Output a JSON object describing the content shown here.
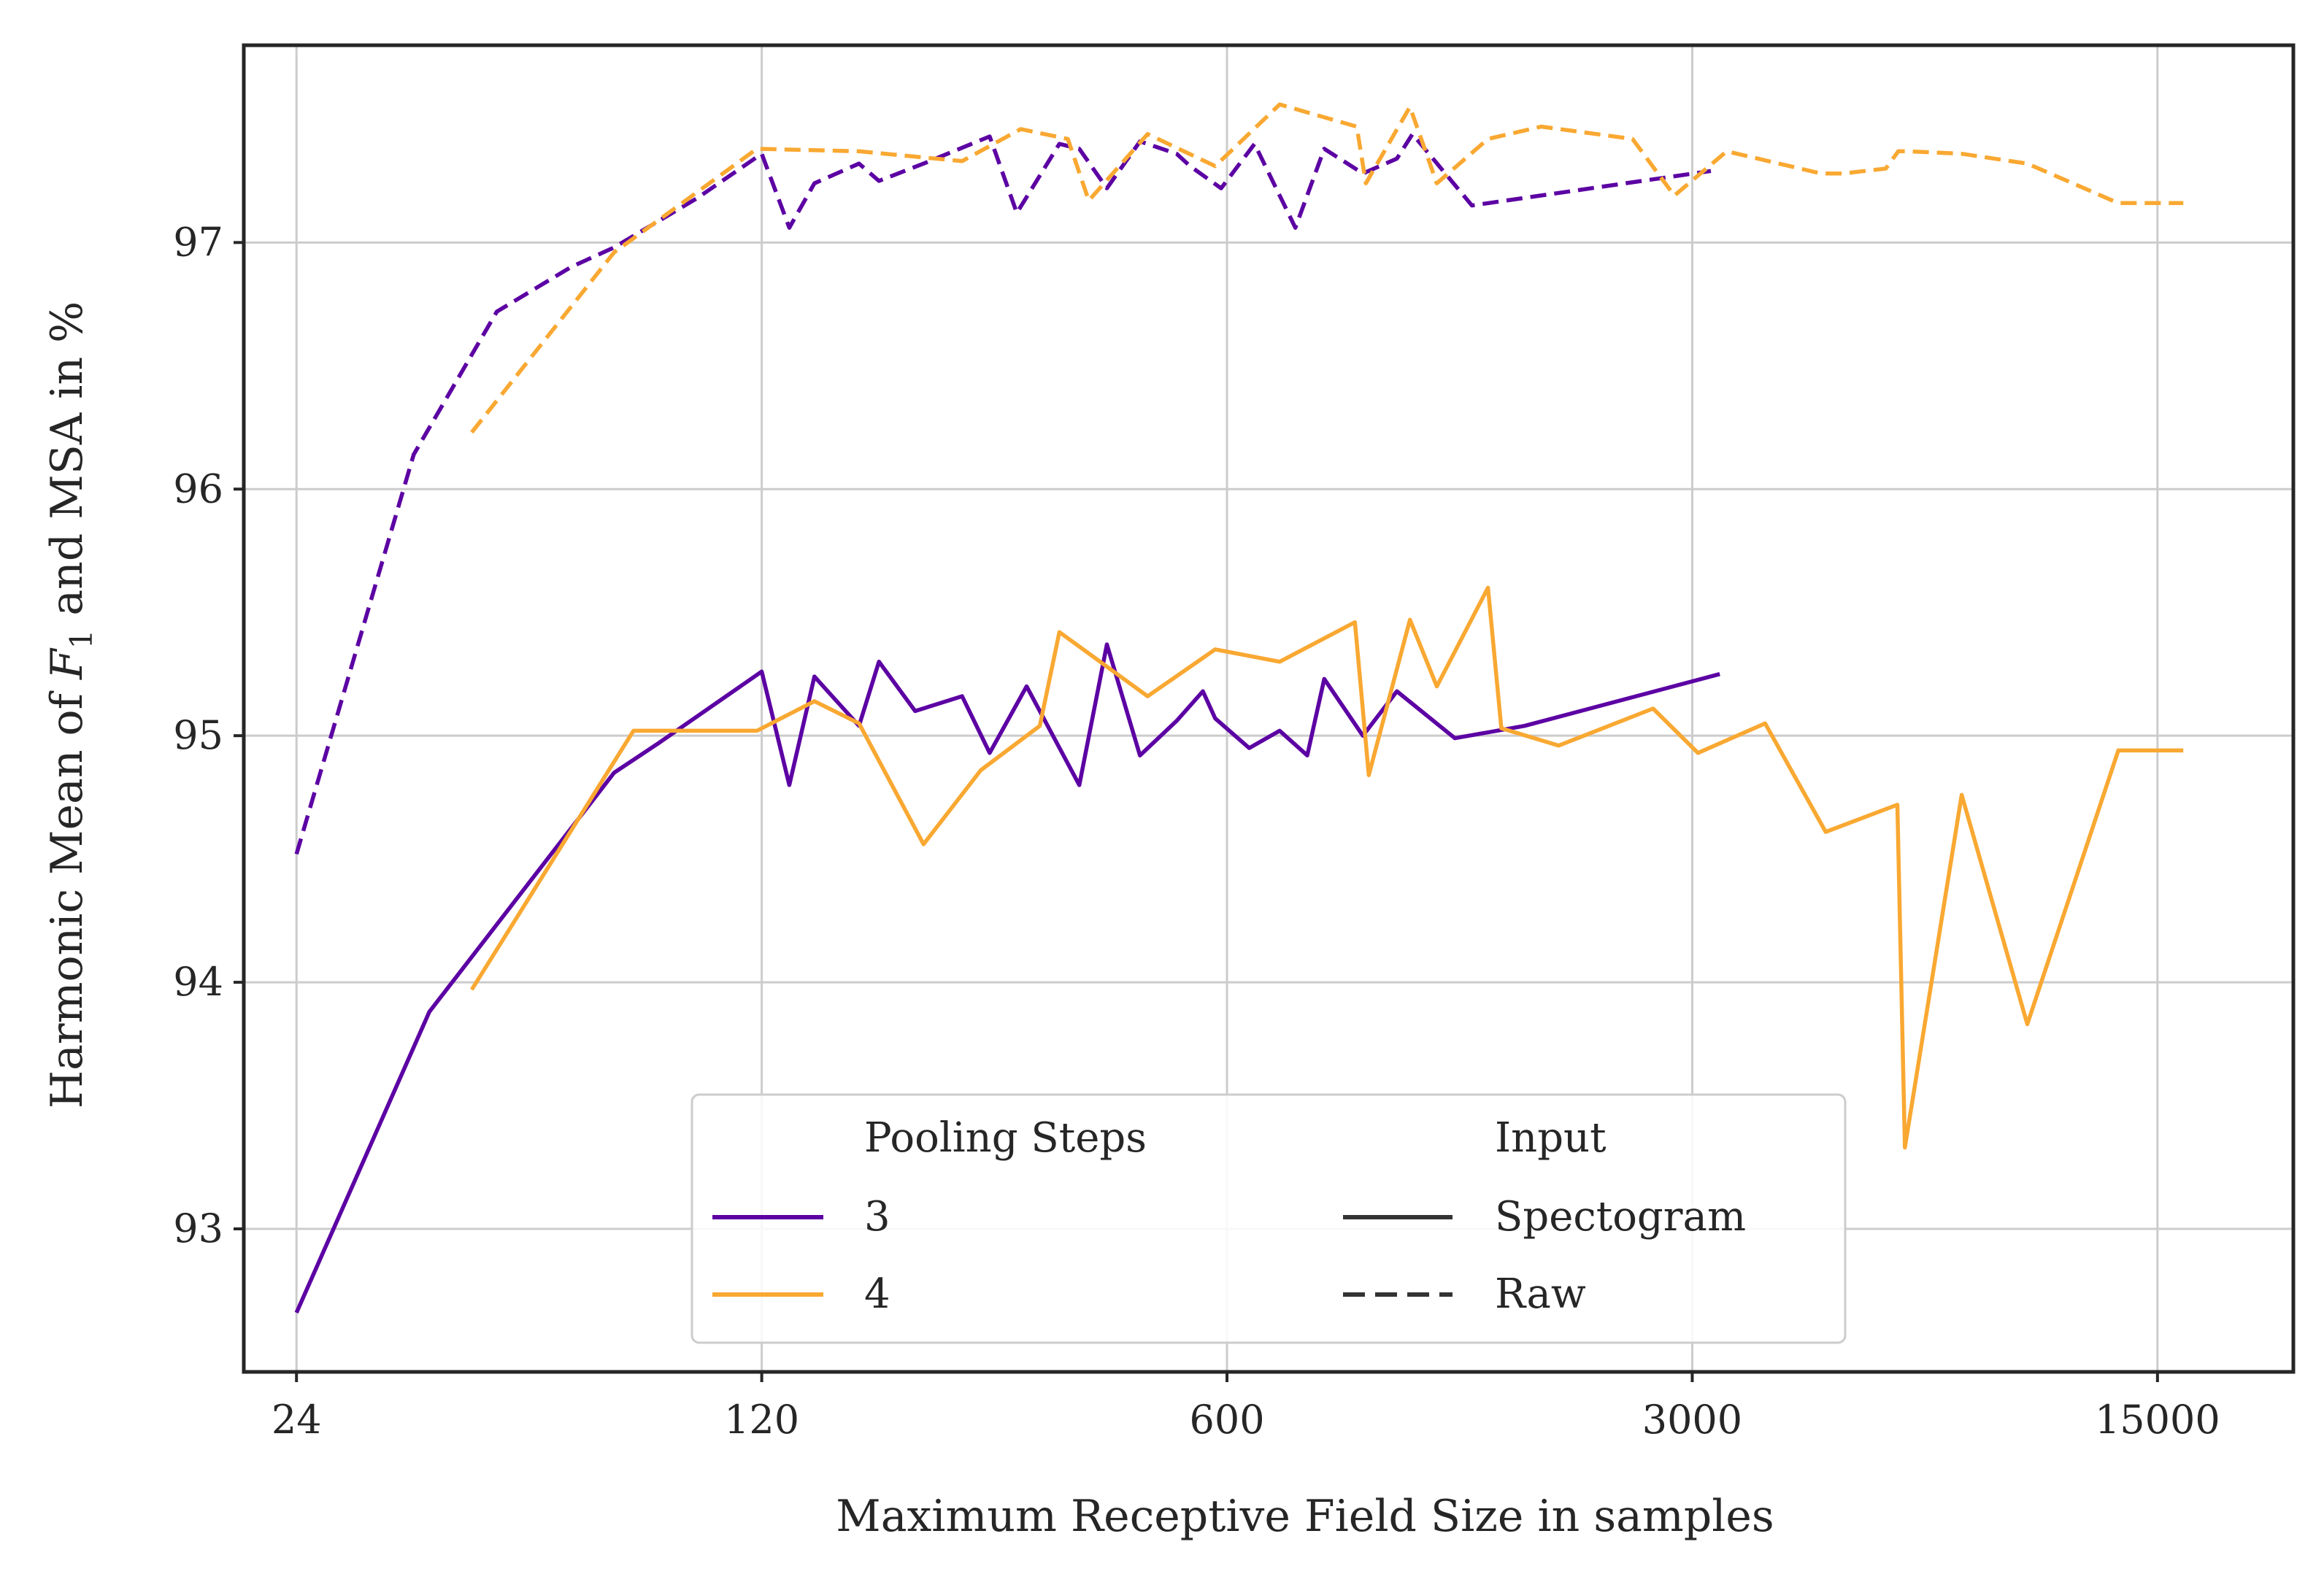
{
  "chart_data": {
    "type": "line",
    "title": "",
    "xlabel": "Maximum Receptive Field Size in samples",
    "ylabel_prefix": "Harmonic Mean of ",
    "ylabel_var": "F",
    "ylabel_sub": "1",
    "ylabel_suffix": " and MSA in %",
    "xscale": "log",
    "xlim": [
      20,
      24000
    ],
    "ylim": [
      92.42,
      97.8
    ],
    "xticks": [
      24,
      120,
      600,
      3000,
      15000
    ],
    "xtick_labels": [
      "24",
      "120",
      "600",
      "3000",
      "15000"
    ],
    "yticks": [
      93,
      94,
      95,
      96,
      97
    ],
    "ytick_labels": [
      "93",
      "94",
      "95",
      "96",
      "97"
    ],
    "grid": true,
    "colors": {
      "pool3": "#5c00a3",
      "pool4": "#f9a832",
      "grid": "#cccccc",
      "frame": "#262626"
    },
    "series": [
      {
        "name": "3 / Spectogram",
        "pooling": "3",
        "input": "Spectogram",
        "style": "solid",
        "color": "#5c00a3",
        "x": [
          24,
          38,
          72,
          84,
          120,
          132,
          144,
          168,
          180,
          204,
          240,
          264,
          300,
          360,
          396,
          444,
          504,
          552,
          576,
          648,
          720,
          792,
          840,
          960,
          1080,
          1320,
          1680,
          3300
        ],
        "y": [
          92.66,
          93.88,
          94.85,
          94.97,
          95.26,
          94.8,
          95.24,
          95.04,
          95.3,
          95.1,
          95.16,
          94.93,
          95.2,
          94.8,
          95.37,
          94.92,
          95.06,
          95.18,
          95.07,
          94.95,
          95.02,
          94.92,
          95.23,
          95.0,
          95.18,
          94.99,
          95.04,
          95.25
        ]
      },
      {
        "name": "4 / Spectogram",
        "pooling": "4",
        "input": "Spectogram",
        "style": "solid",
        "color": "#f9a832",
        "x": [
          44,
          77,
          90,
          118,
          144,
          168,
          210,
          256,
          314,
          336,
          456,
          576,
          720,
          934,
          980,
          1130,
          1240,
          1480,
          1550,
          1890,
          2620,
          3060,
          3860,
          4760,
          6100,
          6260,
          7620,
          9560,
          13100,
          16400
        ],
        "y": [
          93.97,
          95.02,
          95.02,
          95.02,
          95.14,
          95.05,
          94.56,
          94.86,
          95.04,
          95.42,
          95.16,
          95.35,
          95.3,
          95.46,
          94.84,
          95.47,
          95.2,
          95.6,
          95.03,
          94.96,
          95.11,
          94.93,
          95.05,
          94.61,
          94.72,
          93.33,
          94.76,
          93.83,
          94.94,
          94.94
        ]
      },
      {
        "name": "3 / Raw",
        "pooling": "3",
        "input": "Raw",
        "style": "dashed",
        "color": "#5c00a3",
        "x": [
          24,
          36,
          48,
          62,
          72,
          96,
          120,
          132,
          144,
          168,
          180,
          210,
          264,
          290,
          336,
          360,
          396,
          444,
          504,
          528,
          588,
          660,
          760,
          840,
          960,
          1080,
          1140,
          1400,
          3200
        ],
        "y": [
          94.52,
          96.14,
          96.72,
          96.9,
          96.98,
          97.18,
          97.36,
          97.06,
          97.24,
          97.32,
          97.25,
          97.32,
          97.43,
          97.12,
          97.4,
          97.38,
          97.22,
          97.41,
          97.36,
          97.31,
          97.22,
          97.4,
          97.06,
          97.38,
          97.28,
          97.34,
          97.44,
          97.15,
          97.29
        ]
      },
      {
        "name": "4 / Raw",
        "pooling": "4",
        "input": "Raw",
        "style": "dashed",
        "color": "#f9a832",
        "x": [
          44,
          72,
          118,
          168,
          240,
          294,
          346,
          372,
          456,
          576,
          720,
          940,
          970,
          1130,
          1240,
          1480,
          1780,
          2440,
          2820,
          3380,
          4680,
          5060,
          5860,
          6120,
          6300,
          7620,
          9560,
          13100,
          16400
        ],
        "y": [
          96.23,
          96.96,
          97.38,
          97.37,
          97.33,
          97.46,
          97.42,
          97.17,
          97.44,
          97.31,
          97.56,
          97.47,
          97.24,
          97.55,
          97.24,
          97.42,
          97.47,
          97.42,
          97.19,
          97.37,
          97.28,
          97.28,
          97.3,
          97.37,
          97.37,
          97.36,
          97.32,
          97.16,
          97.16
        ]
      }
    ],
    "legend": {
      "position": "lower-center",
      "pooling_title": "Pooling Steps",
      "pooling_entries": [
        {
          "label": "3",
          "color": "#5c00a3"
        },
        {
          "label": "4",
          "color": "#f9a832"
        }
      ],
      "input_title": "Input",
      "input_entries": [
        {
          "label": "Spectogram",
          "style": "solid"
        },
        {
          "label": "Raw",
          "style": "dashed"
        }
      ]
    }
  }
}
